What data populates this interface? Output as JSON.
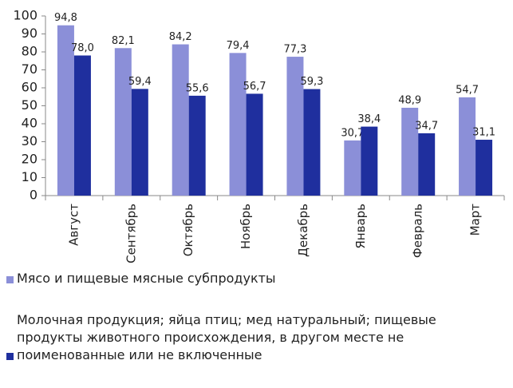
{
  "chart_data": {
    "type": "bar",
    "categories": [
      "Август",
      "Сентябрь",
      "Октябрь",
      "Ноябрь",
      "Декабрь",
      "Январь",
      "Февраль",
      "Март"
    ],
    "series": [
      {
        "name": "Мясо и пищевые мясные субпродукты",
        "color": "#8b8fd8",
        "values": [
          94.8,
          82.1,
          84.2,
          79.4,
          77.3,
          30.7,
          48.9,
          54.7
        ],
        "value_labels": [
          "94,8",
          "82,1",
          "84,2",
          "79,4",
          "77,3",
          "30,7",
          "48,9",
          "54,7"
        ]
      },
      {
        "name": "Молочная продукция; яйца птиц; мед натуральный; пищевые продукты животного происхождения, в другом месте не поименованные или не включенные",
        "color": "#1f2f9e",
        "values": [
          78.0,
          59.4,
          55.6,
          56.7,
          59.3,
          38.4,
          34.7,
          31.1
        ],
        "value_labels": [
          "78,0",
          "59,4",
          "55,6",
          "56,7",
          "59,3",
          "38,4",
          "34,7",
          "31,1"
        ]
      }
    ],
    "ylim": [
      0,
      100
    ],
    "yticks": [
      0,
      10,
      20,
      30,
      40,
      50,
      60,
      70,
      80,
      90,
      100
    ],
    "grid": false,
    "legend": "bottom"
  }
}
